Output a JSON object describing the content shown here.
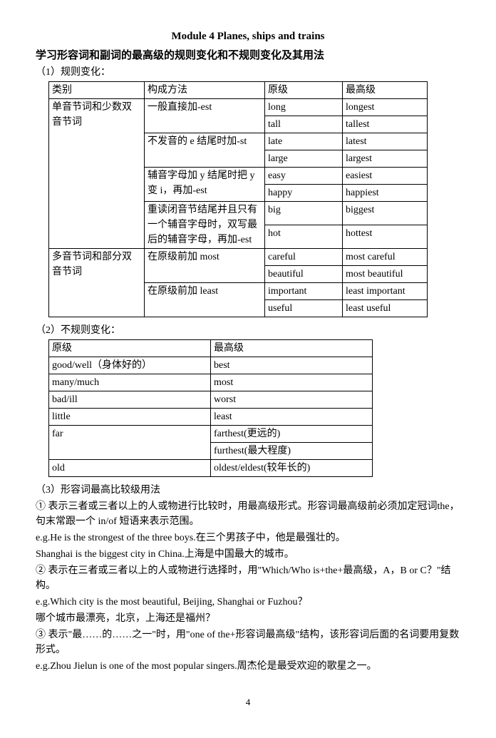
{
  "titleMain": "Module 4 Planes, ships and trains",
  "titleSub": "学习形容词和副词的最高级的规则变化和不规则变化及其用法",
  "section1Label": "（1）规则变化：",
  "table1": {
    "h1": "类别",
    "h2": "构成方法",
    "h3": "原级",
    "h4": "最高级",
    "r1c1": "单音节词和少数双音节词",
    "r1c2": "一般直接加-est",
    "r1c3a": "long",
    "r1c3b": "tall",
    "r1c4a": "longest",
    "r1c4b": "tallest",
    "r2c2": "不发音的 e 结尾时加-st",
    "r2c3a": "late",
    "r2c3b": "large",
    "r2c4a": "latest",
    "r2c4b": "largest",
    "r3c2": "辅音字母加 y 结尾时把 y 变 i，再加-est",
    "r3c3a": "easy",
    "r3c3b": "happy",
    "r3c4a": "easiest",
    "r3c4b": "happiest",
    "r4c2": "重读闭音节结尾并且只有一个辅音字母时，双写最后的辅音字母，再加-est",
    "r4c3a": "big",
    "r4c3b": "hot",
    "r4c4a": "biggest",
    "r4c4b": "hottest",
    "r5c1": "多音节词和部分双音节词",
    "r5c2": "在原级前加 most",
    "r5c3a": "careful",
    "r5c3b": "beautiful",
    "r5c4a": "most careful",
    "r5c4b": "most beautiful",
    "r6c2": "在原级前加 least",
    "r6c3a": "important",
    "r6c3b": "useful",
    "r6c4a": "least important",
    "r6c4b": "least useful"
  },
  "section2Label": "（2）不规则变化：",
  "table2": {
    "h1": "原级",
    "h2": "最高级",
    "r1c1": "good/well（身体好的）",
    "r1c2": "best",
    "r2c1": "many/much",
    "r2c2": "most",
    "r3c1": "bad/ill",
    "r3c2": "worst",
    "r4c1": "little",
    "r4c2": "least",
    "r5c1": "far",
    "r5c2a": "farthest(更远的)",
    "r5c2b": "furthest(最大程度)",
    "r6c1": "old",
    "r6c2": "oldest/eldest(较年长的)"
  },
  "section3Label": "（3）形容词最高比较级用法",
  "p1": "① 表示三者或三者以上的人或物进行比较时，用最高级形式。形容词最高级前必须加定冠词the，句末常跟一个 in/of 短语来表示范围。",
  "p2": "e.g.He is the strongest of the three boys.在三个男孩子中，他是最强壮的。",
  "p3": "Shanghai is the biggest city in China.上海是中国最大的城市。",
  "p4": "② 表示在三者或三者以上的人或物进行选择时，用\"Which/Who is+the+最高级，A，B or C？\"结构。",
  "p5": "e.g.Which city is the most beautiful, Beijing, Shanghai or Fuzhou？",
  "p6": "哪个城市最漂亮，北京，上海还是福州？",
  "p7": "③ 表示\"最……的……之一\"时，用\"one of the+形容词最高级\"结构，该形容词后面的名词要用复数形式。",
  "p8": "e.g.Zhou Jielun is one of the most popular singers.周杰伦是最受欢迎的歌星之一。",
  "pageNum": "4"
}
